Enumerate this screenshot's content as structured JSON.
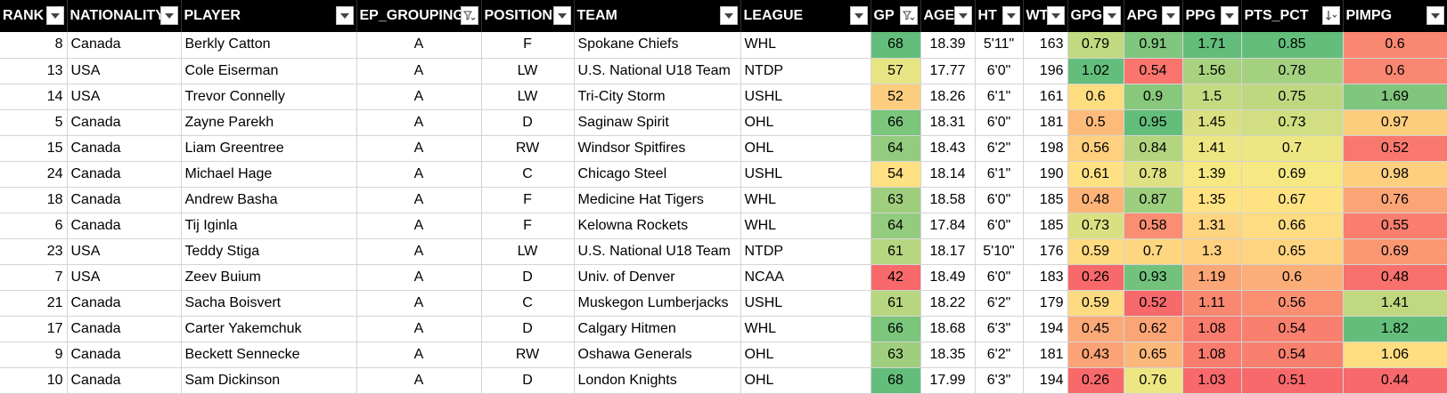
{
  "columns": [
    {
      "key": "rank",
      "label": "RANK",
      "filter": "dropdown",
      "align": "r"
    },
    {
      "key": "nationality",
      "label": "NATIONALITY",
      "filter": "dropdown",
      "align": "l"
    },
    {
      "key": "player",
      "label": "PLAYER",
      "filter": "dropdown",
      "align": "l"
    },
    {
      "key": "ep_grouping",
      "label": "EP_GROUPING",
      "filter": "filtered",
      "align": "c"
    },
    {
      "key": "position",
      "label": "POSITION",
      "filter": "dropdown",
      "align": "c"
    },
    {
      "key": "team",
      "label": "TEAM",
      "filter": "dropdown",
      "align": "l"
    },
    {
      "key": "league",
      "label": "LEAGUE",
      "filter": "dropdown",
      "align": "l"
    },
    {
      "key": "gp",
      "label": "GP",
      "filter": "filtered",
      "align": "c"
    },
    {
      "key": "age",
      "label": "AGE",
      "filter": "dropdown",
      "align": "c"
    },
    {
      "key": "ht",
      "label": "HT",
      "filter": "dropdown",
      "align": "c"
    },
    {
      "key": "wt",
      "label": "WT",
      "filter": "dropdown",
      "align": "r"
    },
    {
      "key": "gpg",
      "label": "GPG",
      "filter": "dropdown",
      "align": "c"
    },
    {
      "key": "apg",
      "label": "APG",
      "filter": "dropdown",
      "align": "c"
    },
    {
      "key": "ppg",
      "label": "PPG",
      "filter": "dropdown",
      "align": "c"
    },
    {
      "key": "pts_pct",
      "label": "PTS_PCT",
      "filter": "sorted-desc",
      "align": "c"
    },
    {
      "key": "pimpg",
      "label": "PIMPG",
      "filter": "dropdown",
      "align": "c"
    }
  ],
  "rows": [
    {
      "rank": "8",
      "nationality": "Canada",
      "player": "Berkly Catton",
      "ep_grouping": "A",
      "position": "F",
      "team": "Spokane Chiefs",
      "league": "WHL",
      "gp": "68",
      "age": "18.39",
      "ht": "5'11\"",
      "wt": "163",
      "gpg": "0.79",
      "apg": "0.91",
      "ppg": "1.71",
      "pts_pct": "0.85",
      "pimpg": "0.6"
    },
    {
      "rank": "13",
      "nationality": "USA",
      "player": "Cole Eiserman",
      "ep_grouping": "A",
      "position": "LW",
      "team": "U.S. National U18 Team",
      "league": "NTDP",
      "gp": "57",
      "age": "17.77",
      "ht": "6'0\"",
      "wt": "196",
      "gpg": "1.02",
      "apg": "0.54",
      "ppg": "1.56",
      "pts_pct": "0.78",
      "pimpg": "0.6"
    },
    {
      "rank": "14",
      "nationality": "USA",
      "player": "Trevor Connelly",
      "ep_grouping": "A",
      "position": "LW",
      "team": "Tri-City Storm",
      "league": "USHL",
      "gp": "52",
      "age": "18.26",
      "ht": "6'1\"",
      "wt": "161",
      "gpg": "0.6",
      "apg": "0.9",
      "ppg": "1.5",
      "pts_pct": "0.75",
      "pimpg": "1.69"
    },
    {
      "rank": "5",
      "nationality": "Canada",
      "player": "Zayne Parekh",
      "ep_grouping": "A",
      "position": "D",
      "team": "Saginaw Spirit",
      "league": "OHL",
      "gp": "66",
      "age": "18.31",
      "ht": "6'0\"",
      "wt": "181",
      "gpg": "0.5",
      "apg": "0.95",
      "ppg": "1.45",
      "pts_pct": "0.73",
      "pimpg": "0.97"
    },
    {
      "rank": "15",
      "nationality": "Canada",
      "player": "Liam Greentree",
      "ep_grouping": "A",
      "position": "RW",
      "team": "Windsor Spitfires",
      "league": "OHL",
      "gp": "64",
      "age": "18.43",
      "ht": "6'2\"",
      "wt": "198",
      "gpg": "0.56",
      "apg": "0.84",
      "ppg": "1.41",
      "pts_pct": "0.7",
      "pimpg": "0.52"
    },
    {
      "rank": "24",
      "nationality": "Canada",
      "player": "Michael Hage",
      "ep_grouping": "A",
      "position": "C",
      "team": "Chicago Steel",
      "league": "USHL",
      "gp": "54",
      "age": "18.14",
      "ht": "6'1\"",
      "wt": "190",
      "gpg": "0.61",
      "apg": "0.78",
      "ppg": "1.39",
      "pts_pct": "0.69",
      "pimpg": "0.98"
    },
    {
      "rank": "18",
      "nationality": "Canada",
      "player": "Andrew Basha",
      "ep_grouping": "A",
      "position": "F",
      "team": "Medicine Hat Tigers",
      "league": "WHL",
      "gp": "63",
      "age": "18.58",
      "ht": "6'0\"",
      "wt": "185",
      "gpg": "0.48",
      "apg": "0.87",
      "ppg": "1.35",
      "pts_pct": "0.67",
      "pimpg": "0.76"
    },
    {
      "rank": "6",
      "nationality": "Canada",
      "player": "Tij Iginla",
      "ep_grouping": "A",
      "position": "F",
      "team": "Kelowna Rockets",
      "league": "WHL",
      "gp": "64",
      "age": "17.84",
      "ht": "6'0\"",
      "wt": "185",
      "gpg": "0.73",
      "apg": "0.58",
      "ppg": "1.31",
      "pts_pct": "0.66",
      "pimpg": "0.55"
    },
    {
      "rank": "23",
      "nationality": "USA",
      "player": "Teddy Stiga",
      "ep_grouping": "A",
      "position": "LW",
      "team": "U.S. National U18 Team",
      "league": "NTDP",
      "gp": "61",
      "age": "18.17",
      "ht": "5'10\"",
      "wt": "176",
      "gpg": "0.59",
      "apg": "0.7",
      "ppg": "1.3",
      "pts_pct": "0.65",
      "pimpg": "0.69"
    },
    {
      "rank": "7",
      "nationality": "USA",
      "player": "Zeev Buium",
      "ep_grouping": "A",
      "position": "D",
      "team": "Univ. of Denver",
      "league": "NCAA",
      "gp": "42",
      "age": "18.49",
      "ht": "6'0\"",
      "wt": "183",
      "gpg": "0.26",
      "apg": "0.93",
      "ppg": "1.19",
      "pts_pct": "0.6",
      "pimpg": "0.48"
    },
    {
      "rank": "21",
      "nationality": "Canada",
      "player": "Sacha Boisvert",
      "ep_grouping": "A",
      "position": "C",
      "team": "Muskegon Lumberjacks",
      "league": "USHL",
      "gp": "61",
      "age": "18.22",
      "ht": "6'2\"",
      "wt": "179",
      "gpg": "0.59",
      "apg": "0.52",
      "ppg": "1.11",
      "pts_pct": "0.56",
      "pimpg": "1.41"
    },
    {
      "rank": "17",
      "nationality": "Canada",
      "player": "Carter Yakemchuk",
      "ep_grouping": "A",
      "position": "D",
      "team": "Calgary Hitmen",
      "league": "WHL",
      "gp": "66",
      "age": "18.68",
      "ht": "6'3\"",
      "wt": "194",
      "gpg": "0.45",
      "apg": "0.62",
      "ppg": "1.08",
      "pts_pct": "0.54",
      "pimpg": "1.82"
    },
    {
      "rank": "9",
      "nationality": "Canada",
      "player": "Beckett Sennecke",
      "ep_grouping": "A",
      "position": "RW",
      "team": "Oshawa Generals",
      "league": "OHL",
      "gp": "63",
      "age": "18.35",
      "ht": "6'2\"",
      "wt": "181",
      "gpg": "0.43",
      "apg": "0.65",
      "ppg": "1.08",
      "pts_pct": "0.54",
      "pimpg": "1.06"
    },
    {
      "rank": "10",
      "nationality": "Canada",
      "player": "Sam Dickinson",
      "ep_grouping": "A",
      "position": "D",
      "team": "London Knights",
      "league": "OHL",
      "gp": "68",
      "age": "17.99",
      "ht": "6'3\"",
      "wt": "194",
      "gpg": "0.26",
      "apg": "0.76",
      "ppg": "1.03",
      "pts_pct": "0.51",
      "pimpg": "0.44"
    }
  ],
  "color_scale": {
    "columns": [
      "gp",
      "gpg",
      "apg",
      "ppg",
      "pts_pct",
      "pimpg"
    ],
    "low": "#f8696b",
    "mid": "#ffeb84",
    "high": "#63be7b"
  }
}
